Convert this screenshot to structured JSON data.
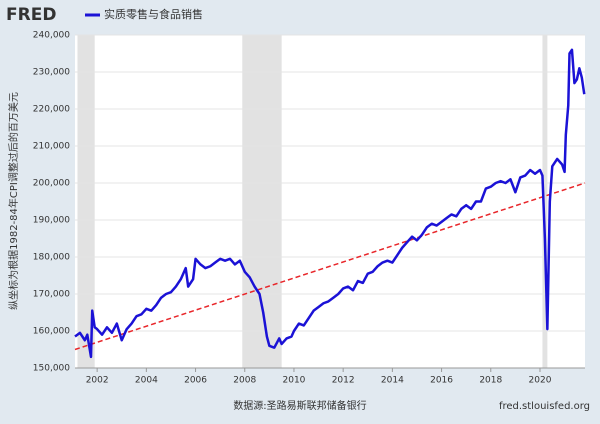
{
  "chart_data": {
    "type": "line",
    "logo": "FRED",
    "ylabel": "纵坐标为根据1982-84年CPI调整过后的百万美元",
    "source": "数据源:圣路易斯联邦储备银行",
    "site": "fred.stlouisfed.org",
    "xlim": [
      2001.1,
      2021.83
    ],
    "xticks": [
      2002,
      2004,
      2006,
      2008,
      2010,
      2012,
      2014,
      2016,
      2018,
      2020
    ],
    "ylim": [
      150000,
      240000
    ],
    "yticks": [
      {
        "value": 150000,
        "label": "150,000"
      },
      {
        "value": 160000,
        "label": "160,000"
      },
      {
        "value": 170000,
        "label": "170,000"
      },
      {
        "value": 180000,
        "label": "180,000"
      },
      {
        "value": 190000,
        "label": "190,000"
      },
      {
        "value": 200000,
        "label": "200,000"
      },
      {
        "value": 210000,
        "label": "210,000"
      },
      {
        "value": 220000,
        "label": "220,000"
      },
      {
        "value": 230000,
        "label": "230,000"
      },
      {
        "value": 240000,
        "label": "240,000"
      }
    ],
    "grid": true,
    "recessions": [
      [
        2001.2,
        2001.9
      ],
      [
        2007.9,
        2009.5
      ],
      [
        2020.1,
        2020.3
      ]
    ],
    "trend": {
      "x": [
        2001.1,
        2021.83
      ],
      "values": [
        155000,
        200000
      ],
      "color": "#e8262a"
    },
    "series": [
      {
        "name": "实质零售与食品销售",
        "color": "#1b12d6",
        "x": [
          2001.1,
          2001.3,
          2001.5,
          2001.6,
          2001.75,
          2001.8,
          2001.9,
          2002.0,
          2002.2,
          2002.4,
          2002.6,
          2002.8,
          2003.0,
          2003.2,
          2003.4,
          2003.6,
          2003.8,
          2004.0,
          2004.2,
          2004.4,
          2004.6,
          2004.8,
          2005.0,
          2005.2,
          2005.4,
          2005.6,
          2005.7,
          2005.9,
          2006.0,
          2006.2,
          2006.4,
          2006.6,
          2006.8,
          2007.0,
          2007.2,
          2007.4,
          2007.6,
          2007.8,
          2008.0,
          2008.2,
          2008.4,
          2008.6,
          2008.75,
          2008.9,
          2009.0,
          2009.2,
          2009.4,
          2009.5,
          2009.7,
          2009.9,
          2010.0,
          2010.2,
          2010.4,
          2010.6,
          2010.8,
          2011.0,
          2011.2,
          2011.4,
          2011.6,
          2011.8,
          2012.0,
          2012.2,
          2012.4,
          2012.6,
          2012.8,
          2013.0,
          2013.2,
          2013.4,
          2013.6,
          2013.8,
          2014.0,
          2014.2,
          2014.4,
          2014.6,
          2014.8,
          2015.0,
          2015.2,
          2015.4,
          2015.6,
          2015.8,
          2016.0,
          2016.2,
          2016.4,
          2016.6,
          2016.8,
          2017.0,
          2017.2,
          2017.4,
          2017.6,
          2017.8,
          2018.0,
          2018.2,
          2018.4,
          2018.6,
          2018.8,
          2019.0,
          2019.2,
          2019.4,
          2019.6,
          2019.8,
          2020.0,
          2020.1,
          2020.2,
          2020.3,
          2020.4,
          2020.5,
          2020.7,
          2020.9,
          2021.0,
          2021.05,
          2021.15,
          2021.2,
          2021.3,
          2021.4,
          2021.5,
          2021.6,
          2021.7,
          2021.8
        ],
        "values": [
          158500,
          159500,
          157500,
          159000,
          153000,
          165500,
          161000,
          160500,
          159000,
          161000,
          159500,
          162000,
          157500,
          160500,
          162000,
          164000,
          164500,
          166000,
          165500,
          167000,
          169000,
          170000,
          170500,
          172000,
          174000,
          177000,
          172000,
          174000,
          179500,
          178000,
          177000,
          177500,
          178500,
          179500,
          179000,
          179500,
          178000,
          179000,
          176000,
          174500,
          172000,
          170000,
          165000,
          158500,
          156000,
          155500,
          158000,
          156500,
          158000,
          158500,
          160000,
          162000,
          161500,
          163500,
          165500,
          166500,
          167500,
          168000,
          169000,
          170000,
          171500,
          172000,
          171000,
          173500,
          173000,
          175500,
          176000,
          177500,
          178500,
          179000,
          178500,
          180500,
          182500,
          184000,
          185500,
          184500,
          186000,
          188000,
          189000,
          188500,
          189500,
          190500,
          191500,
          191000,
          193000,
          194000,
          193000,
          195000,
          195000,
          198500,
          199000,
          200000,
          200500,
          200000,
          201000,
          197500,
          201500,
          202000,
          203500,
          202500,
          203500,
          202000,
          185000,
          160500,
          195000,
          204500,
          206500,
          205000,
          203000,
          213000,
          221000,
          235000,
          236000,
          227000,
          228000,
          231000,
          228500,
          224000
        ]
      }
    ]
  }
}
